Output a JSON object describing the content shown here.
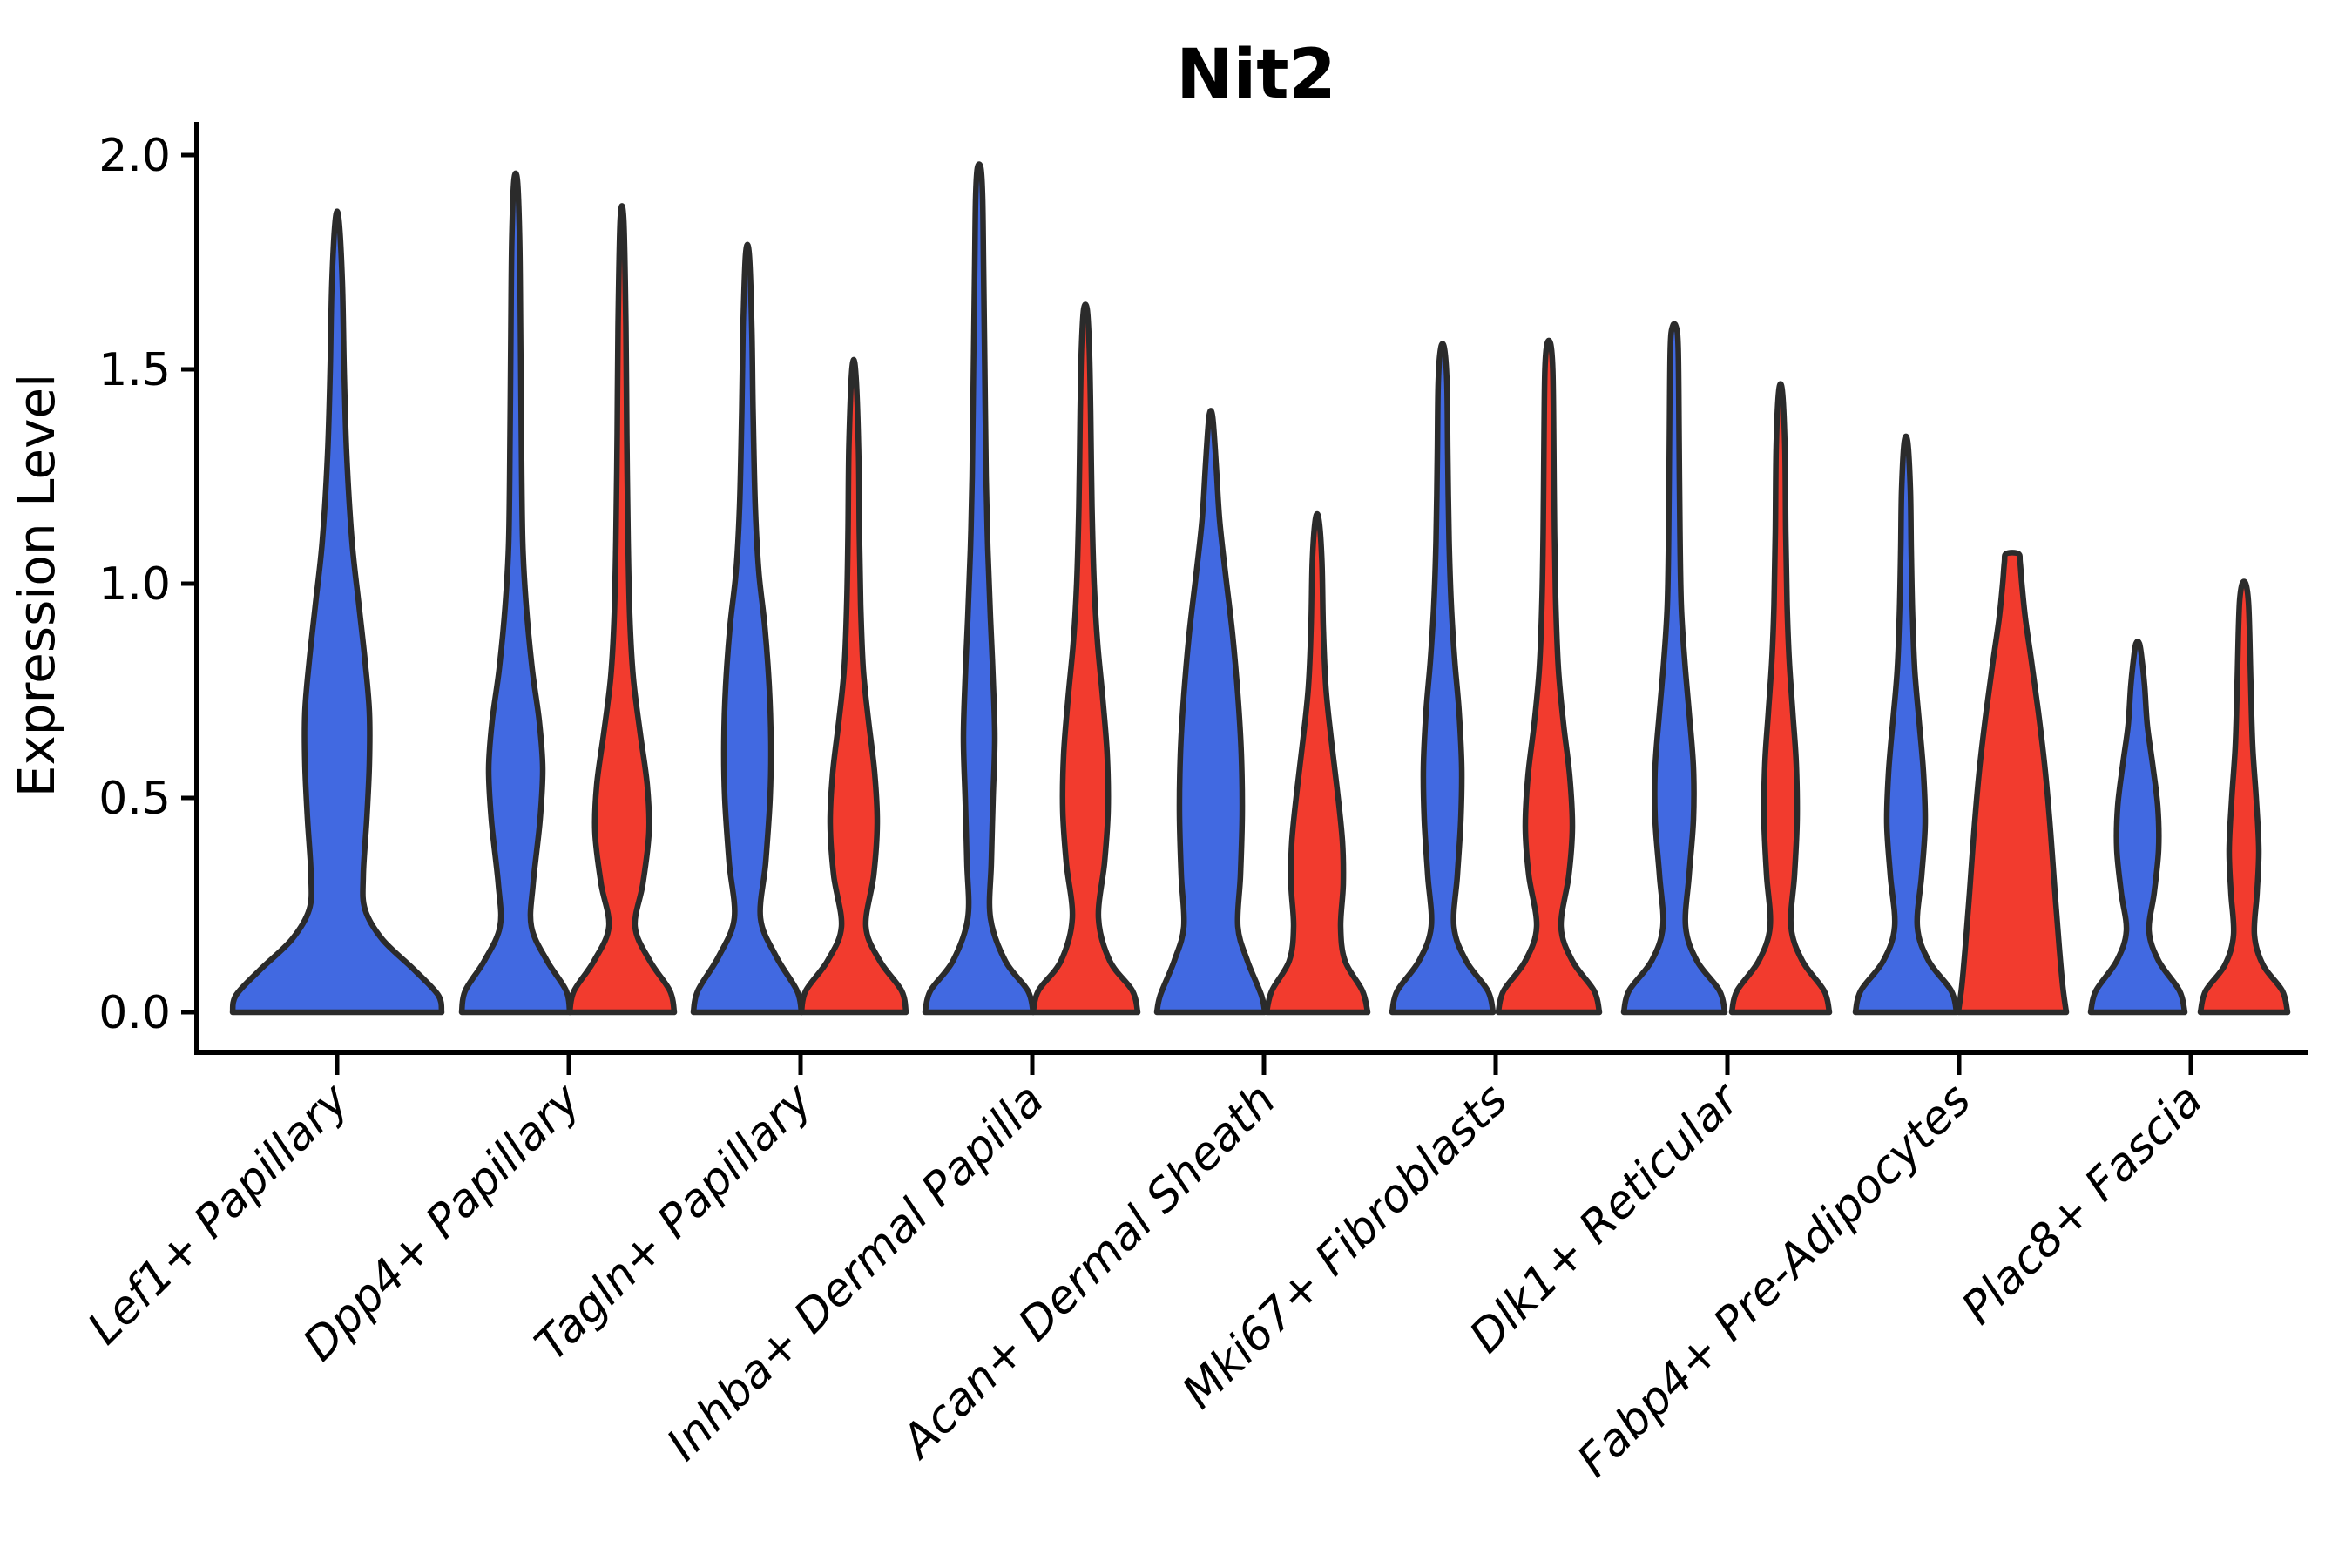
{
  "title": "Nit2",
  "axes": {
    "y_label": "Expression Level",
    "y_ticks": [
      {
        "label": "2.0",
        "value": 2.0
      },
      {
        "label": "1.5",
        "value": 1.5
      },
      {
        "label": "1.0",
        "value": 1.0
      },
      {
        "label": "0.5",
        "value": 0.5
      },
      {
        "label": "0.0",
        "value": 0.0
      }
    ],
    "y_range": [
      0.0,
      2.0
    ],
    "x_categories": [
      "Lef1+ Papillary",
      "Dpp4+ Papillary",
      "Tagln+ Papillary",
      "Inhba+ Dermal Papilla",
      "Acan+ Dermal Sheath",
      "Mki67+ Fibroblasts",
      "Dlk1+ Reticular",
      "Fabp4+ Pre-Adipocytes",
      "Plac8+ Fascia"
    ]
  },
  "colors": {
    "blue_fill": "#4169E1",
    "red_fill": "#F23B2E",
    "outline": "#2b2b2b",
    "axis": "#000000",
    "text": "#000000"
  },
  "chart_data": {
    "type": "violin",
    "title": "Nit2",
    "xlabel": "",
    "ylabel": "Expression Level",
    "ylim": [
      0.0,
      2.0
    ],
    "grid": false,
    "legend_position": "none",
    "categories": [
      "Lef1+ Papillary",
      "Dpp4+ Papillary",
      "Tagln+ Papillary",
      "Inhba+ Dermal Papilla",
      "Acan+ Dermal Sheath",
      "Mki67+ Fibroblasts",
      "Dlk1+ Reticular",
      "Fabp4+ Pre-Adipocytes",
      "Plac8+ Fascia"
    ],
    "series": [
      {
        "name": "blue-group",
        "color": "#4169E1",
        "max_expression": [
          1.85,
          1.94,
          1.77,
          1.97,
          1.39,
          1.55,
          1.6,
          1.33,
          0.86
        ]
      },
      {
        "name": "red-group",
        "color": "#F23B2E",
        "max_expression": [
          null,
          1.85,
          1.5,
          1.64,
          1.15,
          1.56,
          1.45,
          1.07,
          1.0
        ]
      }
    ],
    "violins": [
      {
        "category": "Lef1+ Papillary",
        "cat_index": 0,
        "group": "blue",
        "side": "single",
        "peak": 1.85,
        "profile": [
          [
            0,
            120
          ],
          [
            0.04,
            116
          ],
          [
            0.1,
            88
          ],
          [
            0.17,
            52
          ],
          [
            0.24,
            32
          ],
          [
            0.32,
            30
          ],
          [
            0.45,
            34
          ],
          [
            0.58,
            37
          ],
          [
            0.7,
            37
          ],
          [
            0.82,
            32
          ],
          [
            0.95,
            25
          ],
          [
            1.1,
            17
          ],
          [
            1.3,
            11
          ],
          [
            1.5,
            8
          ],
          [
            1.7,
            6
          ],
          [
            1.85,
            2
          ]
        ]
      },
      {
        "category": "Dpp4+ Papillary",
        "cat_index": 1,
        "group": "blue",
        "side": "left",
        "peak": 1.94,
        "profile": [
          [
            0,
            62
          ],
          [
            0.05,
            58
          ],
          [
            0.12,
            36
          ],
          [
            0.2,
            18
          ],
          [
            0.3,
            20
          ],
          [
            0.45,
            28
          ],
          [
            0.57,
            31
          ],
          [
            0.68,
            27
          ],
          [
            0.8,
            19
          ],
          [
            0.95,
            12
          ],
          [
            1.1,
            8
          ],
          [
            1.35,
            6.5
          ],
          [
            1.6,
            5.5
          ],
          [
            1.8,
            4.5
          ],
          [
            1.94,
            2
          ]
        ]
      },
      {
        "category": "Dpp4+ Papillary",
        "cat_index": 1,
        "group": "red",
        "side": "right",
        "peak": 1.85,
        "profile": [
          [
            0,
            60
          ],
          [
            0.05,
            55
          ],
          [
            0.12,
            32
          ],
          [
            0.2,
            15
          ],
          [
            0.3,
            24
          ],
          [
            0.42,
            31
          ],
          [
            0.53,
            29
          ],
          [
            0.65,
            21
          ],
          [
            0.78,
            13
          ],
          [
            0.92,
            9
          ],
          [
            1.1,
            7
          ],
          [
            1.35,
            5.5
          ],
          [
            1.6,
            4.5
          ],
          [
            1.85,
            2
          ]
        ]
      },
      {
        "category": "Tagln+ Papillary",
        "cat_index": 2,
        "group": "blue",
        "side": "left",
        "peak": 1.77,
        "profile": [
          [
            0,
            62
          ],
          [
            0.05,
            57
          ],
          [
            0.13,
            33
          ],
          [
            0.22,
            15
          ],
          [
            0.35,
            21
          ],
          [
            0.5,
            26
          ],
          [
            0.63,
            27
          ],
          [
            0.76,
            25
          ],
          [
            0.9,
            20
          ],
          [
            1.03,
            13
          ],
          [
            1.18,
            9
          ],
          [
            1.4,
            6.5
          ],
          [
            1.6,
            5
          ],
          [
            1.77,
            2
          ]
        ]
      },
      {
        "category": "Tagln+ Papillary",
        "cat_index": 2,
        "group": "red",
        "side": "right",
        "peak": 1.5,
        "profile": [
          [
            0,
            60
          ],
          [
            0.05,
            55
          ],
          [
            0.12,
            30
          ],
          [
            0.2,
            14
          ],
          [
            0.32,
            23
          ],
          [
            0.44,
            27
          ],
          [
            0.56,
            24
          ],
          [
            0.68,
            17
          ],
          [
            0.8,
            11
          ],
          [
            0.95,
            8
          ],
          [
            1.12,
            6.5
          ],
          [
            1.32,
            5.5
          ],
          [
            1.5,
            2
          ]
        ]
      },
      {
        "category": "Inhba+ Dermal Papilla",
        "cat_index": 3,
        "group": "blue",
        "side": "left",
        "peak": 1.97,
        "profile": [
          [
            0,
            62
          ],
          [
            0.05,
            56
          ],
          [
            0.12,
            30
          ],
          [
            0.22,
            13
          ],
          [
            0.35,
            14
          ],
          [
            0.5,
            16
          ],
          [
            0.64,
            18
          ],
          [
            0.78,
            16
          ],
          [
            0.92,
            13
          ],
          [
            1.08,
            10
          ],
          [
            1.25,
            8
          ],
          [
            1.5,
            6.5
          ],
          [
            1.75,
            5
          ],
          [
            1.9,
            4
          ],
          [
            1.97,
            2
          ]
        ]
      },
      {
        "category": "Inhba+ Dermal Papilla",
        "cat_index": 3,
        "group": "red",
        "side": "right",
        "peak": 1.64,
        "profile": [
          [
            0,
            60
          ],
          [
            0.05,
            54
          ],
          [
            0.12,
            28
          ],
          [
            0.22,
            15
          ],
          [
            0.35,
            22
          ],
          [
            0.47,
            26
          ],
          [
            0.6,
            25
          ],
          [
            0.73,
            20
          ],
          [
            0.86,
            14
          ],
          [
            1.0,
            10
          ],
          [
            1.18,
            7.5
          ],
          [
            1.4,
            6
          ],
          [
            1.55,
            4.5
          ],
          [
            1.64,
            2
          ]
        ]
      },
      {
        "category": "Acan+ Dermal Sheath",
        "cat_index": 4,
        "group": "blue",
        "side": "left",
        "peak": 1.39,
        "profile": [
          [
            0,
            62
          ],
          [
            0.04,
            58
          ],
          [
            0.12,
            42
          ],
          [
            0.2,
            31
          ],
          [
            0.32,
            34
          ],
          [
            0.46,
            36
          ],
          [
            0.6,
            35
          ],
          [
            0.74,
            31
          ],
          [
            0.88,
            25
          ],
          [
            1.02,
            17
          ],
          [
            1.15,
            10
          ],
          [
            1.28,
            6
          ],
          [
            1.39,
            2
          ]
        ]
      },
      {
        "category": "Acan+ Dermal Sheath",
        "cat_index": 4,
        "group": "red",
        "side": "right",
        "peak": 1.15,
        "profile": [
          [
            0,
            58
          ],
          [
            0.05,
            52
          ],
          [
            0.12,
            32
          ],
          [
            0.2,
            27
          ],
          [
            0.3,
            30
          ],
          [
            0.4,
            29
          ],
          [
            0.52,
            23
          ],
          [
            0.64,
            16
          ],
          [
            0.76,
            10
          ],
          [
            0.9,
            7
          ],
          [
            1.05,
            5.5
          ],
          [
            1.15,
            2
          ]
        ]
      },
      {
        "category": "Mki67+ Fibroblasts",
        "cat_index": 5,
        "group": "blue",
        "side": "left",
        "peak": 1.55,
        "profile": [
          [
            0,
            58
          ],
          [
            0.05,
            52
          ],
          [
            0.12,
            27
          ],
          [
            0.2,
            13
          ],
          [
            0.32,
            17
          ],
          [
            0.45,
            21
          ],
          [
            0.57,
            22
          ],
          [
            0.7,
            19
          ],
          [
            0.82,
            14
          ],
          [
            0.95,
            10
          ],
          [
            1.1,
            7.5
          ],
          [
            1.3,
            6
          ],
          [
            1.47,
            5
          ],
          [
            1.55,
            2
          ]
        ]
      },
      {
        "category": "Mki67+ Fibroblasts",
        "cat_index": 5,
        "group": "red",
        "side": "right",
        "peak": 1.56,
        "profile": [
          [
            0,
            58
          ],
          [
            0.05,
            52
          ],
          [
            0.12,
            27
          ],
          [
            0.2,
            14
          ],
          [
            0.32,
            23
          ],
          [
            0.43,
            27
          ],
          [
            0.55,
            24
          ],
          [
            0.67,
            17
          ],
          [
            0.8,
            11
          ],
          [
            0.95,
            8
          ],
          [
            1.12,
            6.5
          ],
          [
            1.35,
            5.5
          ],
          [
            1.5,
            4.5
          ],
          [
            1.56,
            2
          ]
        ]
      },
      {
        "category": "Dlk1+ Reticular",
        "cat_index": 6,
        "group": "blue",
        "side": "left",
        "peak": 1.6,
        "profile": [
          [
            0,
            58
          ],
          [
            0.05,
            52
          ],
          [
            0.12,
            26
          ],
          [
            0.2,
            13
          ],
          [
            0.32,
            17
          ],
          [
            0.45,
            22
          ],
          [
            0.57,
            22
          ],
          [
            0.7,
            17
          ],
          [
            0.82,
            12
          ],
          [
            0.95,
            8
          ],
          [
            1.12,
            6.5
          ],
          [
            1.35,
            5.5
          ],
          [
            1.55,
            4.5
          ],
          [
            1.6,
            2
          ]
        ]
      },
      {
        "category": "Dlk1+ Reticular",
        "cat_index": 6,
        "group": "red",
        "side": "right",
        "peak": 1.45,
        "profile": [
          [
            0,
            56
          ],
          [
            0.05,
            50
          ],
          [
            0.12,
            25
          ],
          [
            0.2,
            12
          ],
          [
            0.32,
            16
          ],
          [
            0.45,
            19
          ],
          [
            0.58,
            18
          ],
          [
            0.7,
            14
          ],
          [
            0.82,
            10
          ],
          [
            0.95,
            7.5
          ],
          [
            1.12,
            6
          ],
          [
            1.32,
            5
          ],
          [
            1.45,
            2
          ]
        ]
      },
      {
        "category": "Fabp4+ Pre-Adipocytes",
        "cat_index": 7,
        "group": "blue",
        "side": "left",
        "peak": 1.33,
        "profile": [
          [
            0,
            58
          ],
          [
            0.05,
            52
          ],
          [
            0.12,
            26
          ],
          [
            0.2,
            13
          ],
          [
            0.32,
            18
          ],
          [
            0.44,
            22
          ],
          [
            0.56,
            20
          ],
          [
            0.68,
            15
          ],
          [
            0.8,
            10
          ],
          [
            0.93,
            7.5
          ],
          [
            1.08,
            6
          ],
          [
            1.22,
            5
          ],
          [
            1.33,
            2
          ]
        ]
      },
      {
        "category": "Fabp4+ Pre-Adipocytes",
        "cat_index": 7,
        "group": "red",
        "side": "right",
        "peak": 1.07,
        "profile": [
          [
            0,
            62
          ],
          [
            0.06,
            58
          ],
          [
            0.15,
            54
          ],
          [
            0.28,
            49
          ],
          [
            0.42,
            44
          ],
          [
            0.56,
            38
          ],
          [
            0.7,
            30
          ],
          [
            0.82,
            22
          ],
          [
            0.92,
            15
          ],
          [
            1.0,
            11
          ],
          [
            1.05,
            9
          ],
          [
            1.07,
            7
          ]
        ]
      },
      {
        "category": "Plac8+ Fascia",
        "cat_index": 8,
        "group": "blue",
        "side": "left",
        "peak": 0.86,
        "profile": [
          [
            0,
            54
          ],
          [
            0.05,
            48
          ],
          [
            0.12,
            24
          ],
          [
            0.19,
            13
          ],
          [
            0.28,
            19
          ],
          [
            0.38,
            24
          ],
          [
            0.48,
            23
          ],
          [
            0.58,
            17
          ],
          [
            0.67,
            11
          ],
          [
            0.76,
            8
          ],
          [
            0.82,
            5
          ],
          [
            0.86,
            2
          ]
        ]
      },
      {
        "category": "Plac8+ Fascia",
        "cat_index": 8,
        "group": "red",
        "side": "right",
        "peak": 1.0,
        "profile": [
          [
            0,
            50
          ],
          [
            0.05,
            44
          ],
          [
            0.11,
            22
          ],
          [
            0.18,
            12
          ],
          [
            0.28,
            15
          ],
          [
            0.38,
            17
          ],
          [
            0.5,
            14
          ],
          [
            0.62,
            10
          ],
          [
            0.75,
            8
          ],
          [
            0.88,
            6.5
          ],
          [
            0.96,
            5
          ],
          [
            1.0,
            2
          ]
        ]
      }
    ]
  }
}
